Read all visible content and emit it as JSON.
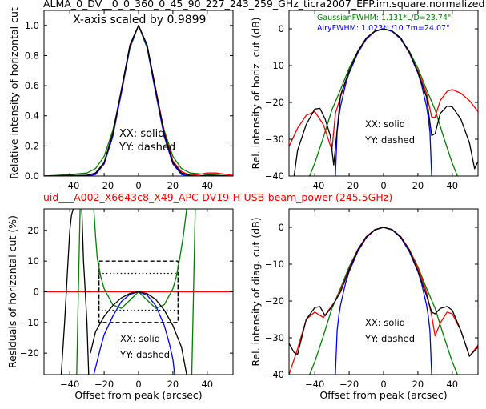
{
  "figure": {
    "title": "ALMA_0_DV__0_0_360_0_45_90_227_243_259_GHz_ticra2007_EFP.im.square.normalized",
    "subtitle": "uid___A002_X6643c8_X49_APC-DV19-H-USB-beam_power (245.5GHz)",
    "subtitle_color": "#ff0000"
  },
  "chart_data": [
    {
      "id": "horizontal-cut",
      "type": "line",
      "ylabel": "Relative intensity of horizontal cut",
      "xlabel": "",
      "xlim": [
        -55,
        55
      ],
      "ylim": [
        0,
        1.1
      ],
      "xticks": [
        -40,
        -20,
        0,
        20,
        40
      ],
      "yticks": [
        0.0,
        0.2,
        0.4,
        0.6,
        0.8,
        1.0
      ],
      "ytick_format": "1",
      "annotation": "X-axis scaled by 0.9899",
      "labels": [
        "XX: solid",
        "YY: dashed"
      ],
      "series": [
        {
          "color": "#008000",
          "dash": "",
          "x": [
            -55,
            -40,
            -30,
            -25,
            -20,
            -15,
            -10,
            -5,
            0,
            5,
            10,
            15,
            20,
            25,
            30,
            40,
            55
          ],
          "y": [
            0,
            0.01,
            0.02,
            0.05,
            0.13,
            0.3,
            0.55,
            0.85,
            1.0,
            0.85,
            0.55,
            0.3,
            0.13,
            0.05,
            0.02,
            0.01,
            0
          ]
        },
        {
          "color": "#0000ff",
          "dash": "",
          "x": [
            -55,
            -30,
            -25,
            -20,
            -15,
            -10,
            -5,
            0,
            5,
            10,
            15,
            20,
            25,
            30,
            55
          ],
          "y": [
            0,
            0,
            0.01,
            0.08,
            0.26,
            0.55,
            0.86,
            1.0,
            0.86,
            0.55,
            0.26,
            0.08,
            0.01,
            0,
            0
          ]
        },
        {
          "color": "#ff0000",
          "dash": "",
          "x": [
            -55,
            -40,
            -30,
            -25,
            -20,
            -15,
            -10,
            -5,
            0,
            5,
            10,
            15,
            20,
            25,
            30,
            35,
            40,
            45,
            55
          ],
          "y": [
            0,
            0.005,
            0.005,
            0.02,
            0.09,
            0.28,
            0.57,
            0.87,
            1.0,
            0.87,
            0.58,
            0.29,
            0.1,
            0.03,
            0.005,
            0.01,
            0.02,
            0.02,
            0.005
          ]
        },
        {
          "color": "#000000",
          "dash": "",
          "x": [
            -55,
            -40,
            -30,
            -25,
            -20,
            -15,
            -10,
            -5,
            0,
            5,
            10,
            15,
            20,
            25,
            30,
            35,
            40,
            55
          ],
          "y": [
            0,
            0.005,
            0.005,
            0.02,
            0.09,
            0.28,
            0.57,
            0.87,
            1.0,
            0.87,
            0.57,
            0.28,
            0.09,
            0.02,
            0.005,
            0.0,
            0.005,
            0
          ]
        }
      ]
    },
    {
      "id": "horizontal-cut-db",
      "type": "line",
      "ylabel": "Rel. intensity of horiz. cut (dB)",
      "xlabel": "",
      "xlim": [
        -55,
        55
      ],
      "ylim": [
        -40,
        5
      ],
      "xticks": [
        -40,
        -20,
        0,
        20,
        40
      ],
      "yticks": [
        0,
        -10,
        -20,
        -30,
        -40
      ],
      "ytick_format": "0",
      "legend": [
        {
          "text": "GaussianFWHM: 1.131*L/D=23.74\"",
          "color": "#008000"
        },
        {
          "text": "AiryFWHM: 1.023*L/10.7m=24.07\"",
          "color": "#0000ff"
        }
      ],
      "labels": [
        "XX: solid",
        "YY: dashed"
      ],
      "series": [
        {
          "color": "#008000",
          "dash": "",
          "x": [
            -43,
            -40,
            -35,
            -30,
            -25,
            -20,
            -15,
            -10,
            -5,
            0,
            5,
            10,
            15,
            20,
            25,
            30,
            35,
            40,
            43
          ],
          "y": [
            -40,
            -36.5,
            -29.5,
            -22,
            -16.5,
            -10.7,
            -6.1,
            -2.7,
            -0.7,
            0,
            -0.7,
            -2.7,
            -6.1,
            -10.7,
            -16.5,
            -22,
            -29.5,
            -36.5,
            -40
          ]
        },
        {
          "color": "#0000ff",
          "dash": "",
          "x": [
            -28,
            -27,
            -26,
            -25,
            -22,
            -20,
            -15,
            -10,
            -5,
            0,
            5,
            10,
            15,
            20,
            22,
            25,
            26,
            27,
            28
          ],
          "y": [
            -40,
            -28,
            -24,
            -21,
            -15,
            -12,
            -6.6,
            -2.8,
            -0.7,
            0,
            -0.7,
            -2.8,
            -6.6,
            -12,
            -15,
            -21,
            -24,
            -28,
            -40
          ]
        },
        {
          "color": "#ff0000",
          "dash": "",
          "x": [
            -55,
            -50,
            -45,
            -40,
            -35,
            -30,
            -28,
            -25,
            -20,
            -15,
            -10,
            -5,
            0,
            5,
            10,
            15,
            20,
            25,
            28,
            30,
            33,
            37,
            40,
            45,
            50,
            55
          ],
          "y": [
            -32,
            -27,
            -23.5,
            -22.5,
            -26,
            -33,
            -23,
            -18.5,
            -11.5,
            -6.2,
            -2.5,
            -0.6,
            0,
            -0.6,
            -2.5,
            -6.5,
            -11.5,
            -17.5,
            -24,
            -24,
            -19.5,
            -17,
            -16.5,
            -17.5,
            -19.5,
            -22.5
          ]
        },
        {
          "color": "#000000",
          "dash": "",
          "x": [
            -52,
            -50,
            -45,
            -40,
            -37,
            -34,
            -31,
            -29,
            -25,
            -20,
            -15,
            -10,
            -5,
            0,
            5,
            10,
            15,
            20,
            25,
            28,
            30,
            33,
            37,
            40,
            45,
            50,
            53,
            55
          ],
          "y": [
            -40,
            -33,
            -26,
            -21.8,
            -21.6,
            -24.5,
            -29,
            -37,
            -18,
            -11.5,
            -6.2,
            -2.5,
            -0.6,
            0,
            -0.6,
            -2.5,
            -6.3,
            -11.8,
            -18.5,
            -29,
            -28.5,
            -23,
            -21,
            -21.2,
            -24.5,
            -31,
            -38,
            -36
          ]
        }
      ]
    },
    {
      "id": "residuals",
      "type": "line",
      "ylabel": "Residuals of horizontal cut (%)",
      "xlabel": "Offset from peak (arcsec)",
      "xlim": [
        -55,
        55
      ],
      "ylim": [
        -27,
        27
      ],
      "xticks": [
        -40,
        -20,
        0,
        20,
        40
      ],
      "yticks": [
        20,
        10,
        0,
        -10,
        -20
      ],
      "ytick_format": "0",
      "labels": [
        "XX: solid",
        "YY: dashed"
      ],
      "series": [
        {
          "color": "#ff0000",
          "dash": "",
          "x": [
            -55,
            55
          ],
          "y": [
            0,
            0
          ]
        },
        {
          "color": "#000000",
          "dash": "5,3",
          "x": [
            -23,
            23,
            23,
            -23,
            -23
          ],
          "y": [
            10,
            10,
            -10,
            -10,
            10
          ]
        },
        {
          "color": "#000000",
          "dash": "1.5,3",
          "x": [
            -23,
            23,
            23,
            -23,
            -23
          ],
          "y": [
            6,
            6,
            -6,
            -6,
            6
          ]
        },
        {
          "color": "#008000",
          "dash": "",
          "x": [
            -36,
            -35,
            -34
          ],
          "y": [
            -27,
            0,
            27
          ]
        },
        {
          "color": "#008000",
          "dash": "",
          "x": [
            -26,
            -25,
            -24,
            -22,
            -20,
            -15,
            -10,
            -5,
            0,
            5,
            10,
            15,
            20,
            22,
            24,
            26,
            28
          ],
          "y": [
            27,
            18,
            11,
            5,
            1,
            -4.2,
            -5.4,
            -2.7,
            0,
            -2.7,
            -5.4,
            -4.2,
            1,
            5,
            11,
            18,
            27
          ]
        },
        {
          "color": "#008000",
          "dash": "",
          "x": [
            31,
            32,
            33
          ],
          "y": [
            -27,
            0,
            27
          ]
        },
        {
          "color": "#0000ff",
          "dash": "",
          "x": [
            -26,
            -22,
            -20,
            -15,
            -10,
            -5,
            0,
            5,
            10,
            15,
            18,
            20,
            21
          ],
          "y": [
            -27,
            -18,
            -14,
            -8,
            -3.2,
            -0.8,
            0,
            -1.1,
            -4.5,
            -11,
            -17,
            -22,
            -27
          ]
        },
        {
          "color": "#000000",
          "dash": "",
          "x": [
            -45,
            -43,
            -41,
            -40,
            -39,
            -38
          ],
          "y": [
            -27,
            -10,
            10,
            20,
            25,
            27
          ]
        },
        {
          "color": "#000000",
          "dash": "",
          "x": [
            -33,
            -32,
            -31,
            -30,
            -29
          ],
          "y": [
            27,
            10,
            0,
            -10,
            -27
          ]
        },
        {
          "color": "#000000",
          "dash": "",
          "x": [
            -28,
            -25,
            -20,
            -15,
            -10,
            -5,
            0,
            5,
            10,
            15,
            20,
            25,
            28
          ],
          "y": [
            -20,
            -13,
            -8,
            -4.5,
            -2,
            -0.5,
            0,
            -0.6,
            -2.5,
            -6,
            -11,
            -18,
            -27
          ]
        }
      ]
    },
    {
      "id": "diagonal-cut-db",
      "type": "line",
      "ylabel": "Rel. intensity of diag. cut (dB)",
      "xlabel": "Offset from peak (arcsec)",
      "xlim": [
        -55,
        55
      ],
      "ylim": [
        -40,
        5
      ],
      "xticks": [
        -40,
        -20,
        0,
        20,
        40
      ],
      "yticks": [
        0,
        -10,
        -20,
        -30,
        -40
      ],
      "ytick_format": "0",
      "labels": [
        "XX: solid",
        "YY: dashed"
      ],
      "series": [
        {
          "color": "#008000",
          "dash": "",
          "x": [
            -43,
            -40,
            -35,
            -30,
            -25,
            -20,
            -15,
            -10,
            -5,
            0,
            5,
            10,
            15,
            20,
            25,
            30,
            35,
            40,
            43
          ],
          "y": [
            -40,
            -36.5,
            -29.5,
            -22,
            -16.5,
            -10.7,
            -6.1,
            -2.7,
            -0.7,
            0,
            -0.7,
            -2.7,
            -6.1,
            -10.7,
            -16.5,
            -22,
            -29.5,
            -36.5,
            -40
          ]
        },
        {
          "color": "#0000ff",
          "dash": "",
          "x": [
            -28,
            -27,
            -26,
            -25,
            -22,
            -20,
            -15,
            -10,
            -5,
            0,
            5,
            10,
            15,
            20,
            22,
            25,
            26,
            27,
            28
          ],
          "y": [
            -40,
            -28,
            -24,
            -21,
            -15,
            -12,
            -6.6,
            -2.8,
            -0.7,
            0,
            -0.7,
            -2.8,
            -6.6,
            -12,
            -15,
            -21,
            -24,
            -28,
            -40
          ]
        },
        {
          "color": "#ff0000",
          "dash": "",
          "x": [
            -55,
            -50,
            -45,
            -40,
            -35,
            -32,
            -28,
            -25,
            -20,
            -15,
            -10,
            -5,
            0,
            5,
            10,
            15,
            20,
            25,
            28,
            30,
            33,
            37,
            40,
            45,
            50,
            55
          ],
          "y": [
            -40,
            -33,
            -25,
            -23,
            -24.5,
            -22.5,
            -20,
            -17,
            -11.2,
            -6,
            -2.5,
            -0.6,
            0,
            -0.6,
            -2.5,
            -6,
            -11,
            -17.5,
            -24,
            -29.5,
            -26,
            -23,
            -23.5,
            -28,
            -35,
            -32
          ]
        },
        {
          "color": "#000000",
          "dash": "",
          "x": [
            -55,
            -52,
            -50,
            -45,
            -40,
            -37,
            -34,
            -30,
            -25,
            -20,
            -15,
            -10,
            -5,
            0,
            5,
            10,
            15,
            20,
            25,
            28,
            30,
            33,
            37,
            40,
            45,
            50,
            55
          ],
          "y": [
            -31.5,
            -34,
            -34.5,
            -25,
            -21.8,
            -21.5,
            -24,
            -21.5,
            -17.5,
            -11.5,
            -6.2,
            -2.6,
            -0.6,
            0,
            -0.6,
            -2.6,
            -6.2,
            -11.8,
            -18.5,
            -23,
            -23.5,
            -22,
            -21.5,
            -22.5,
            -28,
            -35,
            -32.5
          ]
        }
      ]
    }
  ]
}
